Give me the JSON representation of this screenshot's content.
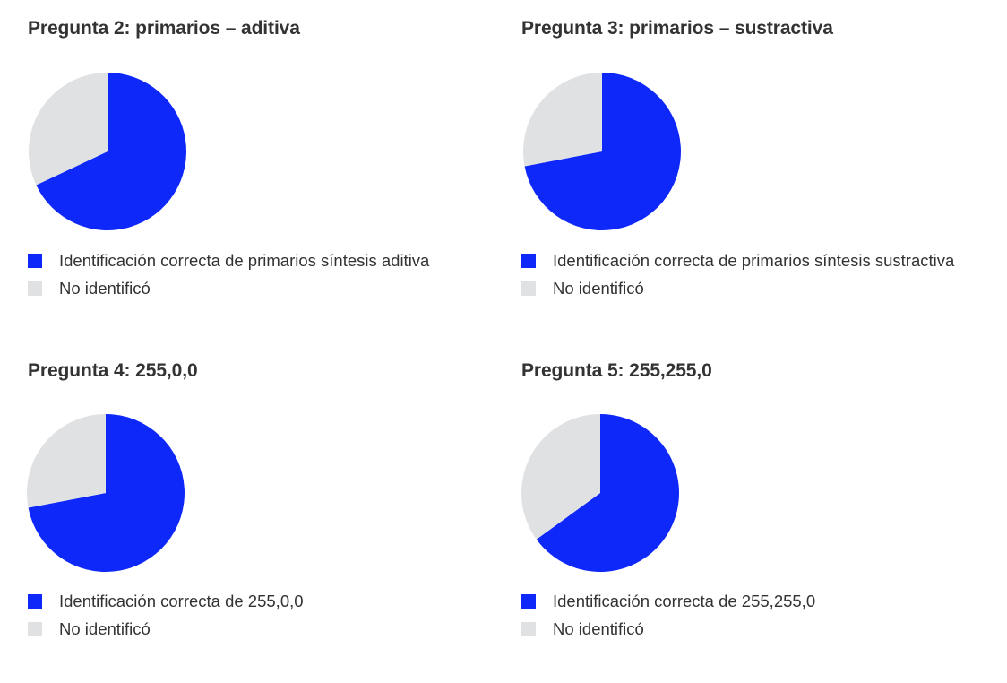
{
  "colors": {
    "correct": "#0f28fa",
    "not_identified": "#e0e1e3",
    "text": "#333333"
  },
  "panels": [
    {
      "title": "Pregunta 2: primarios – aditiva",
      "legend": [
        {
          "label": "Identificación correcta de primarios síntesis aditiva",
          "color": "#0f28fa"
        },
        {
          "label": "No identificó",
          "color": "#e0e1e3"
        }
      ]
    },
    {
      "title": "Pregunta 3: primarios – sustractiva",
      "legend": [
        {
          "label": "Identificación correcta de primarios síntesis sustractiva",
          "color": "#0f28fa"
        },
        {
          "label": "No identificó",
          "color": "#e0e1e3"
        }
      ]
    },
    {
      "title": "Pregunta 4: 255,0,0",
      "legend": [
        {
          "label": "Identificación correcta de 255,0,0",
          "color": "#0f28fa"
        },
        {
          "label": "No identificó",
          "color": "#e0e1e3"
        }
      ]
    },
    {
      "title": "Pregunta 5: 255,255,0",
      "legend": [
        {
          "label": "Identificación correcta de 255,255,0",
          "color": "#0f28fa"
        },
        {
          "label": "No identificó",
          "color": "#e0e1e3"
        }
      ]
    }
  ],
  "chart_data": [
    {
      "type": "pie",
      "title": "Pregunta 2: primarios – aditiva",
      "categories": [
        "Identificación correcta de primarios síntesis aditiva",
        "No identificó"
      ],
      "values": [
        68,
        32
      ],
      "colors": [
        "#0f28fa",
        "#e0e1e3"
      ],
      "legend_position": "bottom"
    },
    {
      "type": "pie",
      "title": "Pregunta 3: primarios – sustractiva",
      "categories": [
        "Identificación correcta de primarios síntesis sustractiva",
        "No identificó"
      ],
      "values": [
        72,
        28
      ],
      "colors": [
        "#0f28fa",
        "#e0e1e3"
      ],
      "legend_position": "bottom"
    },
    {
      "type": "pie",
      "title": "Pregunta 4: 255,0,0",
      "categories": [
        "Identificación correcta de 255,0,0",
        "No identificó"
      ],
      "values": [
        72,
        28
      ],
      "colors": [
        "#0f28fa",
        "#e0e1e3"
      ],
      "legend_position": "bottom"
    },
    {
      "type": "pie",
      "title": "Pregunta 5: 255,255,0",
      "categories": [
        "Identificación correcta de 255,255,0",
        "No identificó"
      ],
      "values": [
        65,
        35
      ],
      "colors": [
        "#0f28fa",
        "#e0e1e3"
      ],
      "legend_position": "bottom"
    }
  ]
}
